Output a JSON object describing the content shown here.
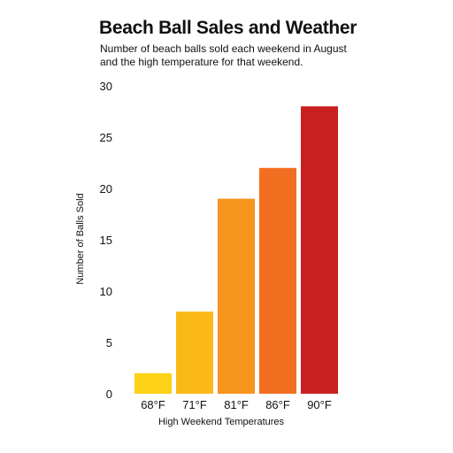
{
  "chart_data": {
    "type": "bar",
    "title": "Beach Ball Sales and Weather",
    "subtitle": "Number of beach balls sold each weekend in August and the high temperature for that weekend.",
    "xlabel": "High Weekend Temperatures",
    "ylabel": "Number of Balls Sold",
    "categories": [
      "68°F",
      "71°F",
      "81°F",
      "86°F",
      "90°F"
    ],
    "values": [
      2,
      8,
      19,
      22,
      28
    ],
    "ylim": [
      0,
      30
    ],
    "yticks": [
      0,
      5,
      10,
      15,
      20,
      25,
      30
    ],
    "ytick_labels": [
      "0",
      "5",
      "10",
      "15",
      "20",
      "25",
      "30"
    ],
    "grid": false,
    "legend": "none",
    "bar_colors": [
      "#fcd116",
      "#fbb917",
      "#f7941d",
      "#f26f21",
      "#c8201f"
    ]
  }
}
